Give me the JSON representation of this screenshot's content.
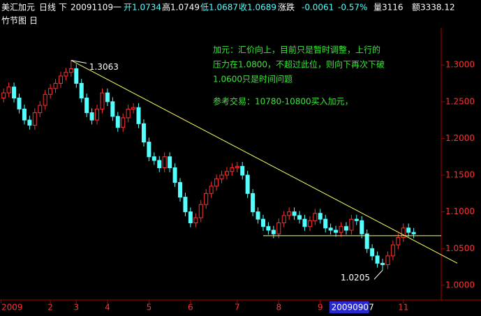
{
  "header": {
    "symbol": "美汇加元",
    "period": "日线",
    "nav": "下",
    "date": "20091109",
    "weekday": "一",
    "open": "开1.0734",
    "high": "高1.0749",
    "low": "低1.0687",
    "close": "收1.0689",
    "change_label": "涨跌",
    "change": "-0.0061",
    "change_pct": "-0.57%",
    "volume": "量3116",
    "amount": "额3338.12",
    "style": "竹节图",
    "style_period": "日"
  },
  "chart_data": {
    "type": "candlestick",
    "up_color": "#ff3232",
    "down_color": "#54ffff",
    "open": [
      1.255,
      1.262,
      1.27,
      1.255,
      1.24,
      1.225,
      1.218,
      1.235,
      1.245,
      1.26,
      1.268,
      1.275,
      1.285,
      1.29,
      1.295,
      1.275,
      1.255,
      1.235,
      1.225,
      1.24,
      1.262,
      1.25,
      1.23,
      1.215,
      1.228,
      1.24,
      1.242,
      1.22,
      1.195,
      1.175,
      1.17,
      1.16,
      1.175,
      1.16,
      1.14,
      1.12,
      1.1,
      1.085,
      1.092,
      1.11,
      1.125,
      1.135,
      1.145,
      1.15,
      1.155,
      1.16,
      1.162,
      1.15,
      1.125,
      1.1,
      1.09,
      1.08,
      1.075,
      1.07,
      1.085,
      1.095,
      1.1,
      1.095,
      1.09,
      1.08,
      1.088,
      1.098,
      1.09,
      1.078,
      1.075,
      1.072,
      1.08,
      1.075,
      1.09,
      1.088,
      1.07,
      1.05,
      1.04,
      1.03,
      1.028,
      1.04,
      1.055,
      1.065,
      1.078,
      1.072
    ],
    "high": [
      1.268,
      1.276,
      1.276,
      1.261,
      1.246,
      1.231,
      1.241,
      1.251,
      1.266,
      1.274,
      1.281,
      1.291,
      1.296,
      1.3063,
      1.301,
      1.281,
      1.261,
      1.241,
      1.246,
      1.268,
      1.268,
      1.256,
      1.236,
      1.234,
      1.246,
      1.248,
      1.248,
      1.226,
      1.201,
      1.181,
      1.176,
      1.181,
      1.181,
      1.166,
      1.146,
      1.126,
      1.106,
      1.098,
      1.116,
      1.131,
      1.141,
      1.151,
      1.156,
      1.161,
      1.166,
      1.168,
      1.168,
      1.156,
      1.131,
      1.106,
      1.096,
      1.086,
      1.081,
      1.091,
      1.101,
      1.106,
      1.106,
      1.101,
      1.096,
      1.094,
      1.104,
      1.104,
      1.096,
      1.084,
      1.081,
      1.086,
      1.086,
      1.096,
      1.096,
      1.094,
      1.076,
      1.056,
      1.046,
      1.036,
      1.046,
      1.061,
      1.071,
      1.084,
      1.084,
      1.078
    ],
    "low": [
      1.249,
      1.256,
      1.249,
      1.234,
      1.219,
      1.212,
      1.212,
      1.229,
      1.239,
      1.254,
      1.262,
      1.269,
      1.279,
      1.284,
      1.269,
      1.249,
      1.229,
      1.219,
      1.219,
      1.234,
      1.244,
      1.224,
      1.209,
      1.209,
      1.222,
      1.234,
      1.214,
      1.189,
      1.169,
      1.164,
      1.154,
      1.154,
      1.154,
      1.134,
      1.114,
      1.094,
      1.079,
      1.079,
      1.086,
      1.104,
      1.119,
      1.129,
      1.139,
      1.144,
      1.149,
      1.154,
      1.144,
      1.119,
      1.094,
      1.084,
      1.074,
      1.069,
      1.064,
      1.064,
      1.079,
      1.089,
      1.089,
      1.084,
      1.074,
      1.074,
      1.082,
      1.084,
      1.072,
      1.069,
      1.066,
      1.066,
      1.069,
      1.069,
      1.082,
      1.064,
      1.044,
      1.034,
      1.024,
      1.0205,
      1.022,
      1.034,
      1.049,
      1.059,
      1.066,
      1.064
    ],
    "close": [
      1.262,
      1.27,
      1.255,
      1.24,
      1.225,
      1.218,
      1.235,
      1.245,
      1.26,
      1.268,
      1.275,
      1.285,
      1.29,
      1.295,
      1.275,
      1.255,
      1.235,
      1.225,
      1.24,
      1.262,
      1.25,
      1.23,
      1.215,
      1.228,
      1.24,
      1.242,
      1.22,
      1.195,
      1.175,
      1.17,
      1.16,
      1.175,
      1.16,
      1.14,
      1.12,
      1.1,
      1.085,
      1.092,
      1.11,
      1.125,
      1.135,
      1.145,
      1.15,
      1.155,
      1.16,
      1.162,
      1.15,
      1.125,
      1.1,
      1.09,
      1.08,
      1.075,
      1.07,
      1.085,
      1.095,
      1.1,
      1.095,
      1.09,
      1.08,
      1.088,
      1.098,
      1.09,
      1.078,
      1.075,
      1.072,
      1.08,
      1.075,
      1.09,
      1.088,
      1.07,
      1.05,
      1.04,
      1.03,
      1.028,
      1.04,
      1.055,
      1.065,
      1.078,
      1.072,
      1.07
    ],
    "xlim": [
      -0.7,
      84.3
    ],
    "ylim": [
      0.98,
      1.36
    ],
    "yticks": [
      {
        "value": 1.0,
        "label": "1.0000"
      },
      {
        "value": 1.05,
        "label": "1.0500"
      },
      {
        "value": 1.1,
        "label": "1.1000"
      },
      {
        "value": 1.15,
        "label": "1.1500"
      },
      {
        "value": 1.2,
        "label": "1.2000"
      },
      {
        "value": 1.25,
        "label": "1.2500"
      },
      {
        "value": 1.3,
        "label": "1.3000"
      }
    ],
    "xticks": [
      {
        "value": -0.5,
        "label": "2009"
      },
      {
        "value": 9,
        "label": "2"
      },
      {
        "value": 14,
        "label": "3"
      },
      {
        "value": 20,
        "label": "4"
      },
      {
        "value": 28,
        "label": "5"
      },
      {
        "value": 36,
        "label": "6"
      },
      {
        "value": 45,
        "label": "7"
      },
      {
        "value": 53,
        "label": "8"
      },
      {
        "value": 61,
        "label": "9"
      },
      {
        "value": 77,
        "label": "11"
      }
    ],
    "cursor_tick": {
      "value": 63,
      "label": "20090907"
    },
    "lines": [
      {
        "color": "#ffff66",
        "x": [
          13,
          87.4
        ],
        "y": [
          1.3063,
          1.03
        ]
      },
      {
        "color": "#ffff66",
        "x": [
          50,
          84.3
        ],
        "y": [
          1.0675,
          1.0675
        ]
      }
    ],
    "marked": [
      {
        "series": "high",
        "index": 13
      },
      {
        "series": "low",
        "index": 73
      }
    ],
    "note": [
      "加元：汇价向上，目前只是暂时调整，上行的",
      "压力在1.0800，不超过此位，则向下再次下破",
      "1.0600只是时间问题",
      "参考交易：10780-10800买入加元，"
    ],
    "note_color": "#3ce63c"
  }
}
